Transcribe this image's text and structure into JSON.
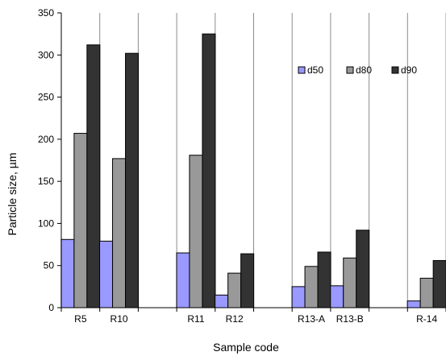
{
  "chart_data": {
    "type": "bar",
    "xlabel": "Sample code",
    "ylabel": "Particle  size, µm",
    "ylim": [
      0,
      350
    ],
    "yticks": [
      0,
      50,
      100,
      150,
      200,
      250,
      300,
      350
    ],
    "grid": {
      "vertical": true,
      "horizontal": false
    },
    "legend_position": "top-right",
    "categories": [
      "R5",
      "R10",
      "",
      "R11",
      "R12",
      "",
      "R13-A",
      "R13-B",
      "",
      "R-14"
    ],
    "series": [
      {
        "name": "d50",
        "color": "#9999ff",
        "values": [
          81,
          79,
          null,
          65,
          15,
          null,
          25,
          26,
          null,
          8
        ]
      },
      {
        "name": "d80",
        "color": "#999999",
        "values": [
          207,
          177,
          null,
          181,
          41,
          null,
          49,
          59,
          null,
          35
        ]
      },
      {
        "name": "d90",
        "color": "#333333",
        "values": [
          312,
          302,
          null,
          325,
          64,
          null,
          66,
          92,
          null,
          56
        ]
      }
    ]
  }
}
